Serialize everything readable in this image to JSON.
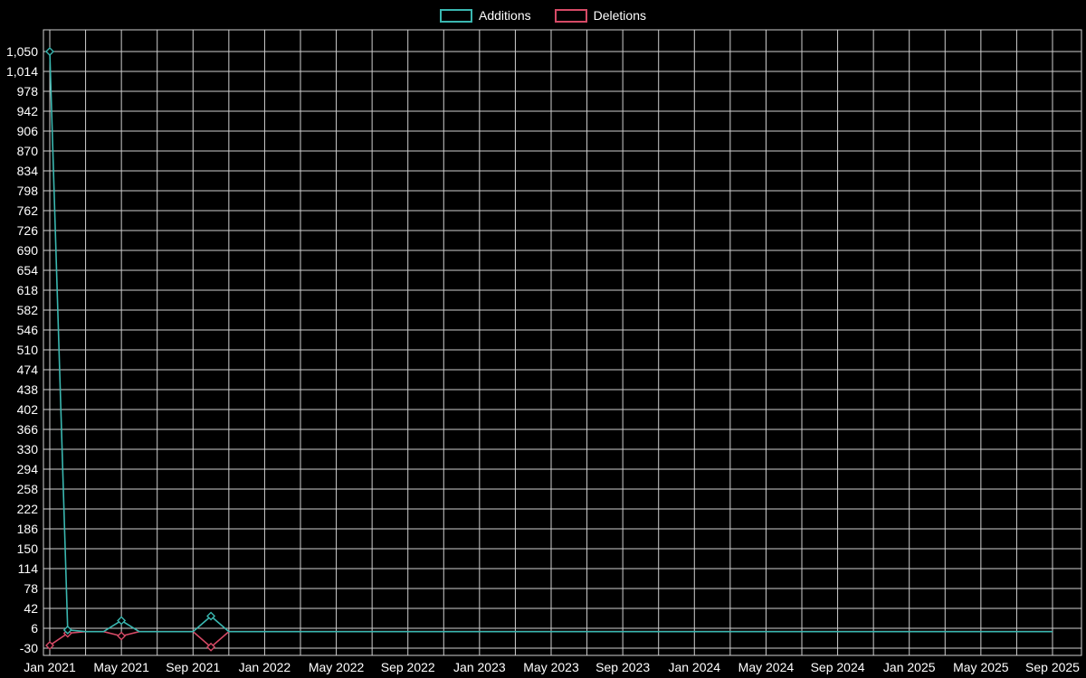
{
  "chart_data": {
    "type": "line",
    "title": "",
    "xlabel": "",
    "ylabel": "",
    "legend_position": "top",
    "grid": true,
    "background": "#000000",
    "text_color": "#ffffff",
    "grid_color": "#cfcfcf",
    "ylim": [
      -30,
      1050
    ],
    "y_tick_step": 36,
    "y_ticks": [
      -30,
      6,
      42,
      78,
      114,
      150,
      186,
      222,
      258,
      294,
      330,
      366,
      402,
      438,
      474,
      510,
      546,
      582,
      618,
      654,
      690,
      726,
      762,
      798,
      834,
      870,
      906,
      942,
      978,
      1014,
      1050
    ],
    "y_tick_labels": [
      "-30",
      "6",
      "42",
      "78",
      "114",
      "150",
      "186",
      "222",
      "258",
      "294",
      "330",
      "366",
      "402",
      "438",
      "474",
      "510",
      "546",
      "582",
      "618",
      "654",
      "690",
      "726",
      "762",
      "798",
      "834",
      "870",
      "906",
      "942",
      "978",
      "1,014",
      "1,050"
    ],
    "x": [
      "Jan 2021",
      "Feb 2021",
      "Mar 2021",
      "Apr 2021",
      "May 2021",
      "Jun 2021",
      "Jul 2021",
      "Aug 2021",
      "Sep 2021",
      "Oct 2021",
      "Nov 2021",
      "Dec 2021",
      "Jan 2022",
      "Feb 2022",
      "Mar 2022",
      "Apr 2022",
      "May 2022",
      "Jun 2022",
      "Jul 2022",
      "Aug 2022",
      "Sep 2022",
      "Oct 2022",
      "Nov 2022",
      "Dec 2022",
      "Jan 2023",
      "Feb 2023",
      "Mar 2023",
      "Apr 2023",
      "May 2023",
      "Jun 2023",
      "Jul 2023",
      "Aug 2023",
      "Sep 2023",
      "Oct 2023",
      "Nov 2023",
      "Dec 2023",
      "Jan 2024",
      "Feb 2024",
      "Mar 2024",
      "Apr 2024",
      "May 2024",
      "Jun 2024",
      "Jul 2024",
      "Aug 2024",
      "Sep 2024",
      "Oct 2024",
      "Nov 2024",
      "Dec 2024",
      "Jan 2025",
      "Feb 2025",
      "Mar 2025",
      "Apr 2025",
      "May 2025",
      "Jun 2025",
      "Jul 2025",
      "Aug 2025",
      "Sep 2025"
    ],
    "x_tick_labels": [
      "Jan 2021",
      "May 2021",
      "Sep 2021",
      "Jan 2022",
      "May 2022",
      "Sep 2022",
      "Jan 2023",
      "May 2023",
      "Sep 2023",
      "Jan 2024",
      "May 2024",
      "Sep 2024",
      "Jan 2025",
      "May 2025",
      "Sep 2025"
    ],
    "series": [
      {
        "name": "Additions",
        "color": "#3ab7b0",
        "marker": "diamond",
        "values": [
          1050,
          3,
          0,
          0,
          20,
          0,
          0,
          0,
          0,
          28,
          0,
          0,
          0,
          0,
          0,
          0,
          0,
          0,
          0,
          0,
          0,
          0,
          0,
          0,
          0,
          0,
          0,
          0,
          0,
          0,
          0,
          0,
          0,
          0,
          0,
          0,
          0,
          0,
          0,
          0,
          0,
          0,
          0,
          0,
          0,
          0,
          0,
          0,
          0,
          0,
          0,
          0,
          0,
          0,
          0,
          0,
          0
        ]
      },
      {
        "name": "Deletions",
        "color": "#d64a66",
        "marker": "diamond",
        "values": [
          -25,
          -3,
          0,
          0,
          -8,
          0,
          0,
          0,
          0,
          -28,
          0,
          0,
          0,
          0,
          0,
          0,
          0,
          0,
          0,
          0,
          0,
          0,
          0,
          0,
          0,
          0,
          0,
          0,
          0,
          0,
          0,
          0,
          0,
          0,
          0,
          0,
          0,
          0,
          0,
          0,
          0,
          0,
          0,
          0,
          0,
          0,
          0,
          0,
          0,
          0,
          0,
          0,
          0,
          0,
          0,
          0,
          0
        ]
      }
    ]
  }
}
